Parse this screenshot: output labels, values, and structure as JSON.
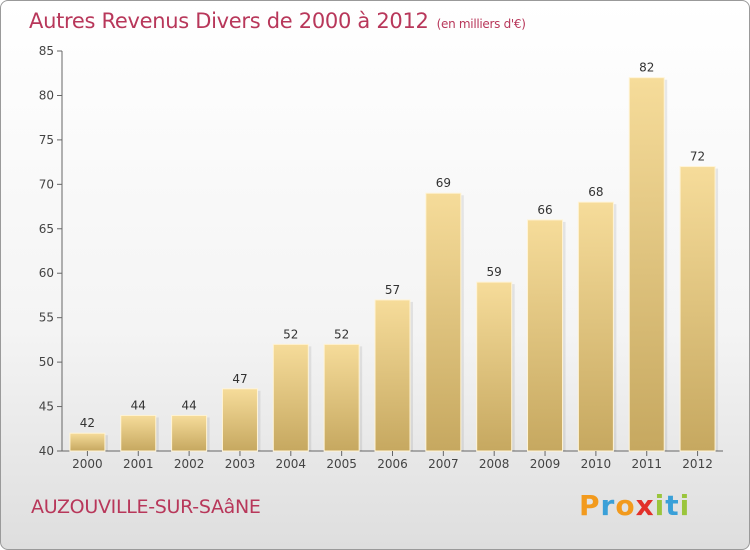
{
  "title": "Autres Revenus Divers de 2000 à 2012",
  "unit": "(en milliers d'€)",
  "commune": "AUZOUVILLE-SUR-SAâNE",
  "logo": {
    "letters": [
      "P",
      "r",
      "o",
      "x",
      "i",
      "t",
      "i"
    ],
    "colors": [
      "#f29a1d",
      "#3aa0d8",
      "#f29a1d",
      "#e2302a",
      "#9ac53c",
      "#3aa0d8",
      "#9ac53c"
    ]
  },
  "chart_data": {
    "type": "bar",
    "categories": [
      "2000",
      "2001",
      "2002",
      "2003",
      "2004",
      "2005",
      "2006",
      "2007",
      "2008",
      "2009",
      "2010",
      "2011",
      "2012"
    ],
    "values": [
      42,
      44,
      44,
      47,
      52,
      52,
      57,
      69,
      59,
      66,
      68,
      82,
      72
    ],
    "ylim": [
      40,
      85
    ],
    "yticks": [
      40,
      45,
      50,
      55,
      60,
      65,
      70,
      75,
      80,
      85
    ],
    "grid": false,
    "bar_color_top": "#f6dc9a",
    "bar_color_bottom": "#c6a860"
  }
}
